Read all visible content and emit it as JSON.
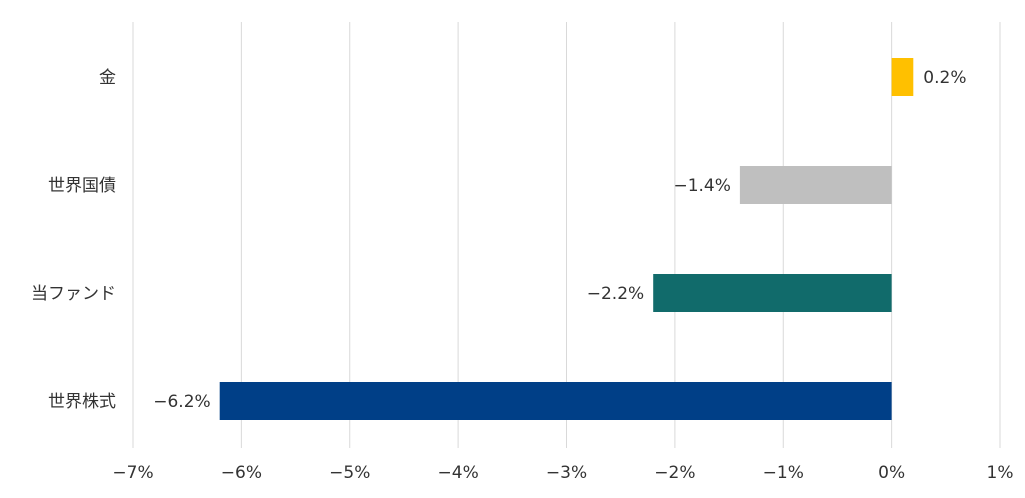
{
  "chart_data": {
    "type": "bar",
    "orientation": "horizontal",
    "title": "",
    "xlabel": "",
    "ylabel": "",
    "xlim": [
      -7,
      1
    ],
    "x_ticks": [
      -7,
      -6,
      -5,
      -4,
      -3,
      -2,
      -1,
      0,
      1
    ],
    "x_tick_labels": [
      "−7%",
      "−6%",
      "−5%",
      "−4%",
      "−3%",
      "−2%",
      "−1%",
      "0%",
      "1%"
    ],
    "grid": true,
    "legend": "none",
    "categories": [
      "金",
      "世界国債",
      "当ファンド",
      "世界株式"
    ],
    "values": [
      0.2,
      -1.4,
      -2.2,
      -6.2
    ],
    "data_labels": [
      "0.2%",
      "−1.4%",
      "−2.2%",
      "−6.2%"
    ],
    "colors": [
      "#FFC000",
      "#BFBFBF",
      "#116B6B",
      "#003F87"
    ]
  }
}
